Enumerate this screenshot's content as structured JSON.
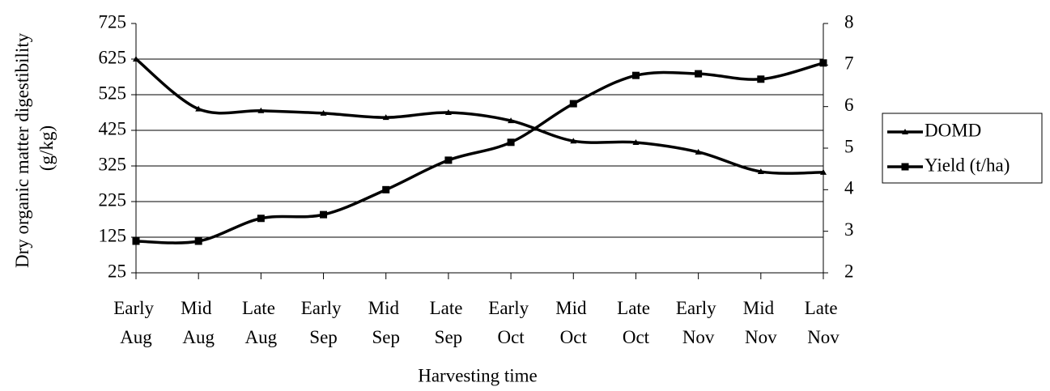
{
  "chart_data": {
    "type": "line",
    "x_label": "Harvesting time",
    "y_label": "Dry organic matter digestibility (g/kg)",
    "categories": [
      "Early Aug",
      "Mid Aug",
      "Late Aug",
      "Early Sep",
      "Mid Sep",
      "Late Sep",
      "Early Oct",
      "Mid Oct",
      "Late Oct",
      "Early Nov",
      "Mid Nov",
      "Late Nov"
    ],
    "series": [
      {
        "name": "DOMD",
        "color": "#000000",
        "marker": "triangle",
        "values": [
          625,
          485,
          480,
          473,
          461,
          475,
          452,
          395,
          391,
          364,
          309,
          307
        ]
      },
      {
        "name": "Yield (t/ha)",
        "color": "#000000",
        "marker": "square",
        "axis": "y2",
        "values": [
          2.76,
          2.76,
          3.31,
          3.4,
          4.0,
          4.71,
          5.14,
          6.07,
          6.75,
          6.79,
          6.66,
          7.05
        ]
      }
    ],
    "ylim": [
      25,
      725
    ],
    "yticks": [
      25,
      125,
      225,
      325,
      425,
      525,
      625,
      725
    ],
    "y2lim": [
      2,
      8
    ],
    "y2ticks": [
      2,
      3,
      4,
      5,
      6,
      7,
      8
    ],
    "grid": true,
    "legend": "right"
  }
}
